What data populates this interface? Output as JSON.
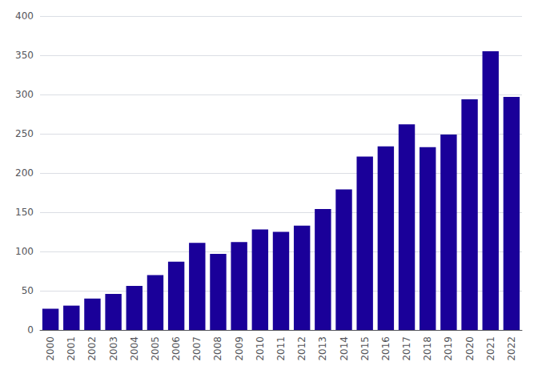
{
  "chart_data": {
    "type": "bar",
    "categories": [
      "2000",
      "2001",
      "2002",
      "2003",
      "2004",
      "2005",
      "2006",
      "2007",
      "2008",
      "2009",
      "2010",
      "2011",
      "2012",
      "2013",
      "2014",
      "2015",
      "2016",
      "2017",
      "2018",
      "2019",
      "2020",
      "2021",
      "2022"
    ],
    "values": [
      27,
      31,
      40,
      46,
      56,
      70,
      87,
      111,
      97,
      112,
      128,
      125,
      133,
      154,
      179,
      221,
      234,
      262,
      233,
      249,
      294,
      355,
      297
    ],
    "color": "#1a0099",
    "ylim": [
      0,
      400
    ],
    "yticks": [
      0,
      50,
      100,
      150,
      200,
      250,
      300,
      350,
      400
    ],
    "grid": true
  }
}
